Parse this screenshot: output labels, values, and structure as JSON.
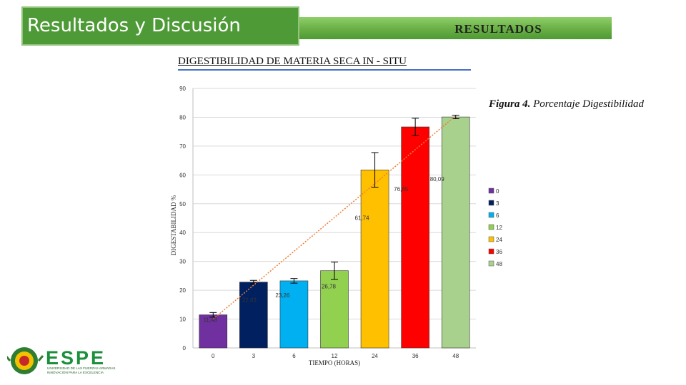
{
  "slide": {
    "title": "Resultados y Discusión",
    "section": "RESULTADOS",
    "heading": "DIGESTIBILIDAD DE MATERIA SECA IN - SITU",
    "caption_bold": "Figura 4.",
    "caption_rest": " Porcentaje Digestibilidad"
  },
  "logo": {
    "name": "ESPE",
    "line1": "UNIVERSIDAD DE LAS FUERZAS ARMADAS",
    "line2": "INNOVACIÓN PARA LA EXCELENCIA"
  },
  "chart_data": {
    "type": "bar",
    "title": "",
    "xlabel": "TIEMPO (HORAS)",
    "ylabel": "DIGESTABILIDAD %",
    "ylim": [
      0,
      90
    ],
    "yticks": [
      0,
      10,
      20,
      30,
      40,
      50,
      60,
      70,
      80,
      90
    ],
    "categories": [
      "0",
      "3",
      "6",
      "12",
      "24",
      "36",
      "48"
    ],
    "values": [
      11.48,
      22.83,
      23.26,
      26.78,
      61.74,
      76.65,
      80.09
    ],
    "data_labels": [
      "11,48",
      "22,83",
      "23,26",
      "26,78",
      "61,74",
      "76,65",
      "80,09"
    ],
    "error_bars": [
      0.8,
      0.6,
      0.8,
      3.0,
      6.0,
      3.0,
      0.6
    ],
    "colors": [
      "#7030a0",
      "#002060",
      "#00b0f0",
      "#92d050",
      "#ffc000",
      "#ff0000",
      "#a9d18e"
    ],
    "legend": {
      "placement": "right",
      "entries": [
        "0",
        "3",
        "6",
        "12",
        "24",
        "36",
        "48"
      ]
    },
    "trendline": {
      "type": "linear",
      "color": "#ed7d31",
      "style": "dotted",
      "from": 10.0,
      "to": 80.5
    },
    "grid": true
  }
}
